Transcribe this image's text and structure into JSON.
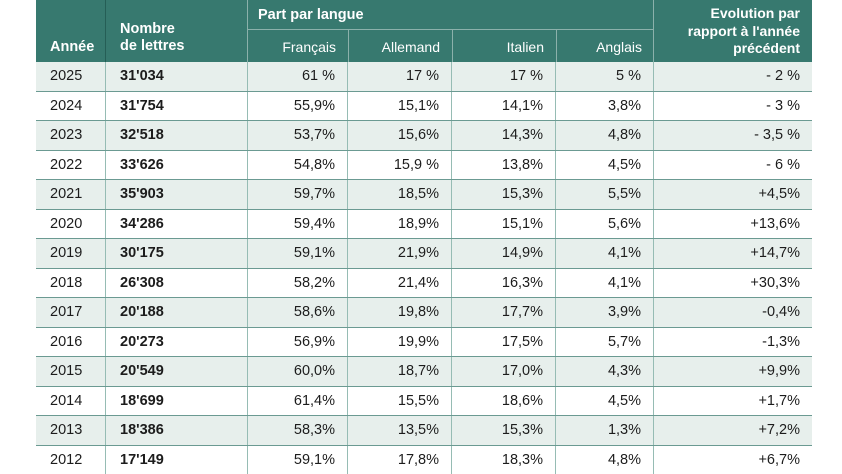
{
  "colors": {
    "header_bg": "#37796f",
    "row_alt": "#e7efec",
    "grid_h": "#6b9a92",
    "grid_v": "#96bcb4",
    "header_text": "#ffffff",
    "body_text": "#1c1c1c"
  },
  "table": {
    "header": {
      "annee": "Année",
      "nombre_line1": "Nombre",
      "nombre_line2": "de lettres",
      "part_par_langue": "Part par langue",
      "languages": [
        "Français",
        "Allemand",
        "Italien",
        "Anglais"
      ],
      "evolution_lines": [
        "Evolution par",
        "rapport à l'année",
        "précédent"
      ]
    },
    "rows": [
      {
        "annee": "2025",
        "nombre": "31'034",
        "francais": "61 %",
        "allemand": "17 %",
        "italien": "17 %",
        "anglais": "5 %",
        "evolution": "- 2 %"
      },
      {
        "annee": "2024",
        "nombre": "31'754",
        "francais": "55,9%",
        "allemand": "15,1%",
        "italien": "14,1%",
        "anglais": "3,8%",
        "evolution": "- 3 %"
      },
      {
        "annee": "2023",
        "nombre": "32'518",
        "francais": "53,7%",
        "allemand": "15,6%",
        "italien": "14,3%",
        "anglais": "4,8%",
        "evolution": "- 3,5 %"
      },
      {
        "annee": "2022",
        "nombre": "33'626",
        "francais": "54,8%",
        "allemand": "15,9 %",
        "italien": "13,8%",
        "anglais": "4,5%",
        "evolution": "- 6 %"
      },
      {
        "annee": "2021",
        "nombre": "35'903",
        "francais": "59,7%",
        "allemand": "18,5%",
        "italien": "15,3%",
        "anglais": "5,5%",
        "evolution": "+4,5%"
      },
      {
        "annee": "2020",
        "nombre": "34'286",
        "francais": "59,4%",
        "allemand": "18,9%",
        "italien": "15,1%",
        "anglais": "5,6%",
        "evolution": "+13,6%"
      },
      {
        "annee": "2019",
        "nombre": "30'175",
        "francais": "59,1%",
        "allemand": "21,9%",
        "italien": "14,9%",
        "anglais": "4,1%",
        "evolution": "+14,7%"
      },
      {
        "annee": "2018",
        "nombre": "26'308",
        "francais": "58,2%",
        "allemand": "21,4%",
        "italien": "16,3%",
        "anglais": "4,1%",
        "evolution": "+30,3%"
      },
      {
        "annee": "2017",
        "nombre": "20'188",
        "francais": "58,6%",
        "allemand": "19,8%",
        "italien": "17,7%",
        "anglais": "3,9%",
        "evolution": "-0,4%"
      },
      {
        "annee": "2016",
        "nombre": "20'273",
        "francais": "56,9%",
        "allemand": "19,9%",
        "italien": "17,5%",
        "anglais": "5,7%",
        "evolution": "-1,3%"
      },
      {
        "annee": "2015",
        "nombre": "20'549",
        "francais": "60,0%",
        "allemand": "18,7%",
        "italien": "17,0%",
        "anglais": "4,3%",
        "evolution": "+9,9%"
      },
      {
        "annee": "2014",
        "nombre": "18'699",
        "francais": "61,4%",
        "allemand": "15,5%",
        "italien": "18,6%",
        "anglais": "4,5%",
        "evolution": "+1,7%"
      },
      {
        "annee": "2013",
        "nombre": "18'386",
        "francais": "58,3%",
        "allemand": "13,5%",
        "italien": "15,3%",
        "anglais": "1,3%",
        "evolution": "+7,2%"
      },
      {
        "annee": "2012",
        "nombre": "17'149",
        "francais": "59,1%",
        "allemand": "17,8%",
        "italien": "18,3%",
        "anglais": "4,8%",
        "evolution": "+6,7%"
      }
    ]
  },
  "chart_data": {
    "type": "table",
    "title": "",
    "column_group": "Part par langue",
    "columns": [
      "Année",
      "Nombre de lettres",
      "Français",
      "Allemand",
      "Italien",
      "Anglais",
      "Evolution par rapport à l'année précédent"
    ],
    "years": [
      2025,
      2024,
      2023,
      2022,
      2021,
      2020,
      2019,
      2018,
      2017,
      2016,
      2015,
      2014,
      2013,
      2012
    ],
    "series": [
      {
        "name": "Nombre de lettres",
        "values": [
          31034,
          31754,
          32518,
          33626,
          35903,
          34286,
          30175,
          26308,
          20188,
          20273,
          20549,
          18699,
          18386,
          17149
        ]
      },
      {
        "name": "Français %",
        "values": [
          61,
          55.9,
          53.7,
          54.8,
          59.7,
          59.4,
          59.1,
          58.2,
          58.6,
          56.9,
          60.0,
          61.4,
          58.3,
          59.1
        ]
      },
      {
        "name": "Allemand %",
        "values": [
          17,
          15.1,
          15.6,
          15.9,
          18.5,
          18.9,
          21.9,
          21.4,
          19.8,
          19.9,
          18.7,
          15.5,
          13.5,
          17.8
        ]
      },
      {
        "name": "Italien %",
        "values": [
          17,
          14.1,
          14.3,
          13.8,
          15.3,
          15.1,
          14.9,
          16.3,
          17.7,
          17.5,
          17.0,
          18.6,
          15.3,
          18.3
        ]
      },
      {
        "name": "Anglais %",
        "values": [
          5,
          3.8,
          4.8,
          4.5,
          5.5,
          5.6,
          4.1,
          4.1,
          3.9,
          5.7,
          4.3,
          4.5,
          1.3,
          4.8
        ]
      },
      {
        "name": "Evolution % vs année précédente",
        "values": [
          -2,
          -3,
          -3.5,
          -6,
          4.5,
          13.6,
          14.7,
          30.3,
          -0.4,
          -1.3,
          9.9,
          1.7,
          7.2,
          6.7
        ]
      }
    ],
    "layout": {
      "striped_rows": true,
      "header_background": "#37796f",
      "alt_row_background": "#e7efec"
    }
  }
}
